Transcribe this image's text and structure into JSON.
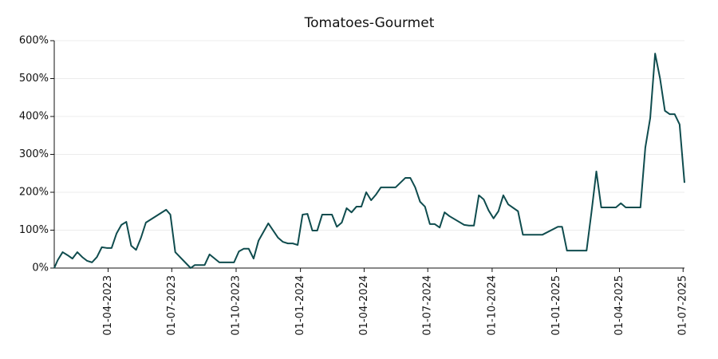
{
  "chart_data": {
    "type": "line",
    "title": "Tomatoes-Gourmet",
    "x": [
      "14-01-2023",
      "19-01-2023",
      "26-01-2023",
      "02-02-2023",
      "09-02-2023",
      "16-02-2023",
      "23-02-2023",
      "02-03-2023",
      "09-03-2023",
      "16-03-2023",
      "23-03-2023",
      "30-03-2023",
      "06-04-2023",
      "13-04-2023",
      "20-04-2023",
      "27-04-2023",
      "04-05-2023",
      "11-05-2023",
      "18-05-2023",
      "25-05-2023",
      "23-06-2023",
      "29-06-2023",
      "06-07-2023",
      "28-07-2023",
      "03-08-2023",
      "17-08-2023",
      "24-08-2023",
      "07-09-2023",
      "28-09-2023",
      "05-10-2023",
      "12-10-2023",
      "19-10-2023",
      "26-10-2023",
      "02-11-2023",
      "16-11-2023",
      "30-11-2023",
      "07-12-2023",
      "14-12-2023",
      "21-12-2023",
      "28-12-2023",
      "04-01-2024",
      "11-01-2024",
      "18-01-2024",
      "25-01-2024",
      "01-02-2024",
      "15-02-2024",
      "22-02-2024",
      "29-02-2024",
      "07-03-2024",
      "14-03-2024",
      "21-03-2024",
      "28-03-2024",
      "04-04-2024",
      "11-04-2024",
      "18-04-2024",
      "25-04-2024",
      "16-05-2024",
      "30-05-2024",
      "06-06-2024",
      "13-06-2024",
      "20-06-2024",
      "27-06-2024",
      "04-07-2024",
      "11-07-2024",
      "18-07-2024",
      "25-07-2024",
      "01-08-2024",
      "22-08-2024",
      "29-08-2024",
      "05-09-2024",
      "12-09-2024",
      "19-09-2024",
      "26-09-2024",
      "03-10-2024",
      "10-10-2024",
      "17-10-2024",
      "24-10-2024",
      "07-11-2024",
      "14-11-2024",
      "12-12-2024",
      "03-01-2025",
      "09-01-2025",
      "16-01-2025",
      "13-02-2025",
      "20-02-2025",
      "27-02-2025",
      "06-03-2025",
      "27-03-2025",
      "03-04-2025",
      "10-04-2025",
      "01-05-2025",
      "08-05-2025",
      "15-05-2025",
      "22-05-2025",
      "29-05-2025",
      "05-06-2025",
      "12-06-2025",
      "19-06-2025",
      "26-06-2025",
      "03-07-2025"
    ],
    "series": [
      {
        "name": "Tomatoes-Gourmet",
        "color": "#0f4c4e",
        "values": [
          0,
          21,
          42,
          34,
          25,
          42,
          29,
          19,
          15,
          29,
          55,
          53,
          53,
          91,
          114,
          122,
          59,
          48,
          80,
          120,
          154,
          141,
          42,
          0,
          8,
          8,
          36,
          15,
          15,
          44,
          51,
          51,
          25,
          72,
          118,
          80,
          69,
          65,
          65,
          61,
          141,
          143,
          99,
          99,
          141,
          141,
          109,
          120,
          158,
          147,
          162,
          162,
          200,
          179,
          194,
          213,
          213,
          238,
          238,
          213,
          175,
          162,
          116,
          116,
          107,
          147,
          137,
          114,
          112,
          112,
          192,
          181,
          152,
          131,
          150,
          192,
          168,
          150,
          88,
          88,
          109,
          109,
          46,
          46,
          147,
          255,
          160,
          160,
          171,
          160,
          160,
          318,
          396,
          566,
          501,
          415,
          406,
          406,
          379,
          225
        ]
      }
    ],
    "xlim": [
      "14-01-2023",
      "03-07-2025"
    ],
    "xticks": [
      "01-04-2023",
      "01-07-2023",
      "01-10-2023",
      "01-01-2024",
      "01-04-2024",
      "01-07-2024",
      "01-10-2024",
      "01-01-2025",
      "01-04-2025",
      "01-07-2025"
    ],
    "ylim": [
      0,
      600
    ],
    "yticks": [
      {
        "value": 0,
        "label": "0%"
      },
      {
        "value": 100,
        "label": "100%"
      },
      {
        "value": 200,
        "label": "200%"
      },
      {
        "value": 300,
        "label": "300%"
      },
      {
        "value": 400,
        "label": "400%"
      },
      {
        "value": 500,
        "label": "500%"
      },
      {
        "value": 600,
        "label": "600%"
      }
    ],
    "grid": true
  }
}
